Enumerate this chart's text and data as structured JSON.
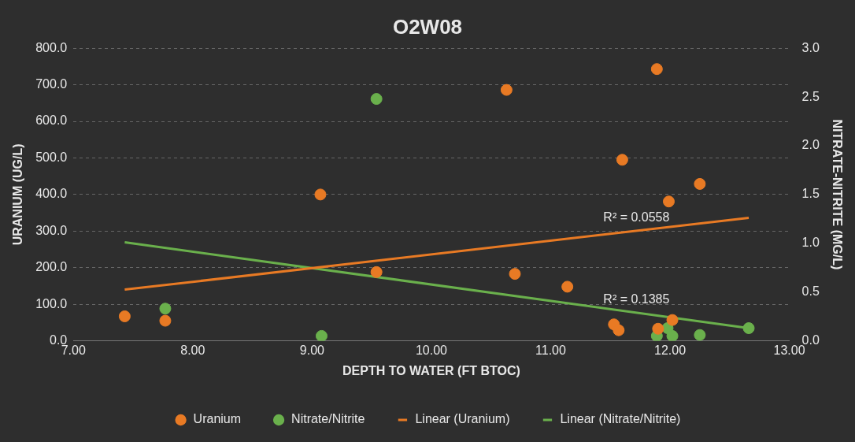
{
  "chart_data": {
    "type": "scatter",
    "title": "O2W08",
    "xlabel": "DEPTH TO WATER (FT BTOC)",
    "ylabel": "URANIUM (UG/L)",
    "y2label": "NITRATE-NITRITE (MG/L)",
    "xlim": [
      7,
      13
    ],
    "xticks": [
      {
        "value": 7,
        "label": "7.00"
      },
      {
        "value": 8,
        "label": "8.00"
      },
      {
        "value": 9,
        "label": "9.00"
      },
      {
        "value": 10,
        "label": "10.00"
      },
      {
        "value": 11,
        "label": "11.00"
      },
      {
        "value": 12,
        "label": "12.00"
      },
      {
        "value": 13,
        "label": "13.00"
      }
    ],
    "ylim": [
      0,
      800
    ],
    "yticks": [
      {
        "value": 0,
        "label": "0.0"
      },
      {
        "value": 100,
        "label": "100.0"
      },
      {
        "value": 200,
        "label": "200.0"
      },
      {
        "value": 300,
        "label": "300.0"
      },
      {
        "value": 400,
        "label": "400.0"
      },
      {
        "value": 500,
        "label": "500.0"
      },
      {
        "value": 600,
        "label": "600.0"
      },
      {
        "value": 700,
        "label": "700.0"
      },
      {
        "value": 800,
        "label": "800.0"
      }
    ],
    "y2lim": [
      0,
      3
    ],
    "y2ticks": [
      {
        "value": 0,
        "label": "0.0"
      },
      {
        "value": 0.5,
        "label": "0.5"
      },
      {
        "value": 1,
        "label": "1.0"
      },
      {
        "value": 1.5,
        "label": "1.5"
      },
      {
        "value": 2,
        "label": "2.0"
      },
      {
        "value": 2.5,
        "label": "2.5"
      },
      {
        "value": 3,
        "label": "3.0"
      }
    ],
    "grid": "y",
    "legend": "bottom",
    "marker": "circle",
    "series": [
      {
        "name": "Uranium",
        "color": "#e87a24",
        "x": [
          7.43,
          7.77,
          9.07,
          9.54,
          10.63,
          10.7,
          11.14,
          11.53,
          11.57,
          11.89,
          11.6,
          11.99,
          12.25,
          11.9,
          12.02
        ],
        "values": [
          67,
          55,
          400,
          188,
          686,
          183,
          148,
          45,
          29,
          743,
          495,
          381,
          429,
          33,
          57
        ]
      },
      {
        "name": "Nitrate/Nitrite",
        "color": "#6ab04c",
        "axis": "y2",
        "x": [
          7.77,
          9.54,
          9.08,
          11.89,
          11.98,
          12.02,
          12.25,
          12.66
        ],
        "values": [
          0.33,
          2.48,
          0.05,
          0.05,
          0.13,
          0.05,
          0.06,
          0.13
        ]
      },
      {
        "name": "Linear (Uranium)",
        "type": "line",
        "color": "#e87a24",
        "marker": "none",
        "x": [
          7.43,
          12.66
        ],
        "values": [
          140,
          336
        ]
      },
      {
        "name": "Linear (Nitrate/Nitrite)",
        "type": "line",
        "color": "#6ab04c",
        "marker": "none",
        "axis": "y2",
        "x": [
          7.43,
          12.66
        ],
        "values": [
          1.01,
          0.13
        ]
      }
    ],
    "annotations": [
      "R² = 0.0558",
      "R² = 0.1385"
    ]
  }
}
